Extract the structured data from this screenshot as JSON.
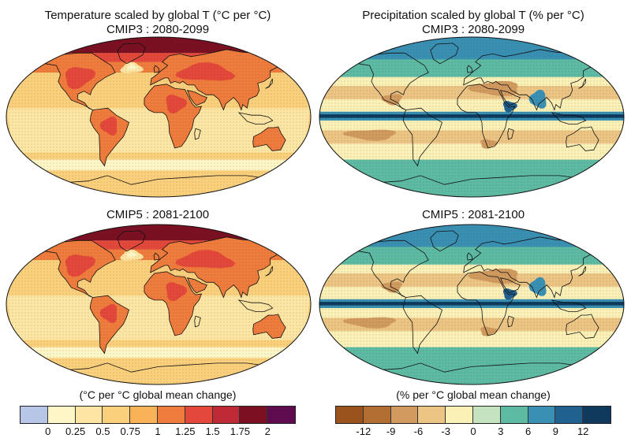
{
  "panels": [
    {
      "id": "temp-cmip3",
      "title_line1": "Temperature scaled by global T (°C per °C)",
      "title_line2": "CMIP3 : 2080-2099",
      "palette": "temperature"
    },
    {
      "id": "precip-cmip3",
      "title_line1": "Precipitation scaled by global T (% per °C)",
      "title_line2": "CMIP3 : 2080-2099",
      "palette": "precipitation"
    },
    {
      "id": "temp-cmip5",
      "title_line1": "",
      "title_line2": "CMIP5 : 2081-2100",
      "palette": "temperature"
    },
    {
      "id": "precip-cmip5",
      "title_line1": "",
      "title_line2": "CMIP5 : 2081-2100",
      "palette": "precipitation"
    }
  ],
  "colorbars": {
    "temperature": {
      "title": "(°C per °C global mean change)",
      "colors": [
        "#b7c5e6",
        "#fdf6c6",
        "#fde6a4",
        "#fbd07c",
        "#f8b257",
        "#ef7c3c",
        "#e3483a",
        "#c02a36",
        "#7c1023",
        "#5e0c4f"
      ],
      "tick_labels": [
        "0",
        "0.25",
        "0.5",
        "0.75",
        "1",
        "1.25",
        "1.5",
        "1.75",
        "2"
      ]
    },
    "precipitation": {
      "title": "(% per °C global mean change)",
      "colors": [
        "#9a531d",
        "#b26d32",
        "#d19a5f",
        "#ecc584",
        "#fbf0b6",
        "#c6e3c0",
        "#5dbaa3",
        "#3a90b3",
        "#20618f",
        "#0f3a5e"
      ],
      "tick_labels": [
        "-12",
        "-9",
        "-6",
        "-3",
        "0",
        "3",
        "6",
        "9",
        "12"
      ]
    }
  }
}
